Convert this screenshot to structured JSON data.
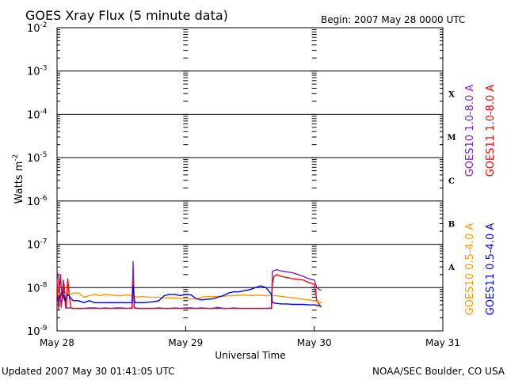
{
  "chart_data": {
    "type": "line",
    "title": "GOES Xray Flux (5 minute data)",
    "begin_label": "Begin:  2007 May 28 0000 UTC",
    "ylabel": "Watts m",
    "ylabel_sup": "-2",
    "xlabel": "Universal Time",
    "yscale": "log",
    "ylim": [
      1e-09,
      0.01
    ],
    "y_ticks": [
      {
        "value": 0.01,
        "base": "10",
        "exp": "-2"
      },
      {
        "value": 0.001,
        "base": "10",
        "exp": "-3"
      },
      {
        "value": 0.0001,
        "base": "10",
        "exp": "-4"
      },
      {
        "value": 1e-05,
        "base": "10",
        "exp": "-5"
      },
      {
        "value": 1e-06,
        "base": "10",
        "exp": "-6"
      },
      {
        "value": 1e-07,
        "base": "10",
        "exp": "-7"
      },
      {
        "value": 1e-08,
        "base": "10",
        "exp": "-8"
      },
      {
        "value": 1e-09,
        "base": "10",
        "exp": "-9"
      }
    ],
    "xlim": [
      0,
      72
    ],
    "x_ticks": [
      {
        "hours": 0,
        "label": "May 28"
      },
      {
        "hours": 24,
        "label": "May 29"
      },
      {
        "hours": 48,
        "label": "May 30"
      },
      {
        "hours": 72,
        "label": "May 31"
      }
    ],
    "flare_classes": [
      {
        "label": "X",
        "at": 0.0003
      },
      {
        "label": "M",
        "at": 3e-05
      },
      {
        "label": "C",
        "at": 3e-06
      },
      {
        "label": "B",
        "at": 3e-07
      },
      {
        "label": "A",
        "at": 3e-08
      }
    ],
    "grid": true,
    "series": [
      {
        "name": "GOES10 1.0-8.0 A",
        "color": "#7b24c8",
        "x": [
          0,
          0.4,
          0.8,
          1.2,
          1.6,
          2,
          2.5,
          3,
          4,
          5,
          6,
          7,
          8,
          9,
          10,
          11,
          12,
          13,
          14,
          14.2,
          14.4,
          14.7,
          15,
          16,
          17,
          18,
          19,
          20,
          21,
          22,
          23,
          24,
          25,
          26,
          27,
          28,
          29,
          30,
          31,
          32,
          33,
          34,
          35,
          36,
          37,
          38,
          39,
          40,
          40.2,
          41,
          41.4,
          42,
          43,
          44,
          45,
          46,
          47,
          48,
          48.5,
          49,
          49.3
        ],
        "y": [
          2.5e-08,
          1.2e-08,
          3.5e-09,
          1.5e-08,
          3.4e-09,
          3.4e-09,
          3.4e-09,
          3.3e-09,
          3.3e-09,
          3.3e-09,
          3.4e-09,
          3.4e-09,
          3.3e-09,
          3.4e-09,
          3.3e-09,
          3.4e-09,
          3.4e-09,
          3.3e-09,
          3.4e-09,
          4e-08,
          3.4e-09,
          3.4e-09,
          3.3e-09,
          3.3e-09,
          3.3e-09,
          3.3e-09,
          3.4e-09,
          3.3e-09,
          3.3e-09,
          3.4e-09,
          3.3e-09,
          3.4e-09,
          3.4e-09,
          3.3e-09,
          3.4e-09,
          3.3e-09,
          3.3e-09,
          3.5e-09,
          3.3e-09,
          3.3e-09,
          3.4e-09,
          3.3e-09,
          3.3e-09,
          3.3e-09,
          3.3e-09,
          3.3e-09,
          3.3e-09,
          3.4e-09,
          2.4e-08,
          2.6e-08,
          2.5e-08,
          2.4e-08,
          2.3e-08,
          2.2e-08,
          2e-08,
          1.8e-08,
          1.6e-08,
          1.5e-08,
          1e-08,
          9e-09,
          8.5e-09
        ]
      },
      {
        "name": "GOES11 1.0-8.0 A",
        "color": "#ff0000",
        "x": [
          0,
          0.3,
          0.6,
          1,
          1.3,
          1.7,
          2,
          2.3,
          2.6,
          3,
          3.5,
          4,
          5,
          6,
          7,
          8,
          9,
          10,
          11,
          12,
          13,
          14,
          14.2,
          14.4,
          14.7,
          15,
          16,
          17,
          18,
          19,
          20,
          21,
          22,
          23,
          24,
          25,
          26,
          27,
          28,
          29,
          30,
          31,
          32,
          33,
          34,
          35,
          36,
          37,
          38,
          39,
          40,
          40.2,
          40.5,
          41,
          41.4,
          42,
          43,
          44,
          45,
          46,
          47,
          48,
          48.5,
          49,
          49.3
        ],
        "y": [
          1.5e-08,
          3.2e-09,
          2e-08,
          5e-09,
          1.2e-08,
          3.3e-09,
          1.6e-08,
          6e-09,
          3.4e-09,
          3.3e-09,
          3.3e-09,
          3.3e-09,
          3.3e-09,
          3.3e-09,
          3.3e-09,
          3.3e-09,
          3.3e-09,
          3.3e-09,
          3.3e-09,
          3.3e-09,
          3.3e-09,
          3.3e-09,
          1.5e-08,
          3.4e-09,
          3.3e-09,
          3.3e-09,
          3.3e-09,
          3.3e-09,
          3.3e-09,
          3.3e-09,
          3.3e-09,
          3.3e-09,
          3.3e-09,
          3.3e-09,
          3.3e-09,
          3.3e-09,
          3.3e-09,
          3.3e-09,
          3.3e-09,
          3.3e-09,
          3.3e-09,
          3.3e-09,
          3.3e-09,
          3.3e-09,
          3.3e-09,
          3.3e-09,
          3.3e-09,
          3.3e-09,
          3.3e-09,
          3.3e-09,
          3.3e-09,
          1.3e-08,
          1.8e-08,
          2e-08,
          1.9e-08,
          1.8e-08,
          1.7e-08,
          1.6e-08,
          1.55e-08,
          1.5e-08,
          1.3e-08,
          1.2e-08,
          5e-09,
          4e-09,
          3.5e-09
        ]
      },
      {
        "name": "GOES10 0.5-4.0 A",
        "color": "#ff9900",
        "x": [
          0,
          1,
          2,
          3,
          4,
          5,
          6,
          7,
          8,
          9,
          10,
          11,
          12,
          13,
          14,
          15,
          16,
          17,
          18,
          19,
          20,
          21,
          22,
          23,
          24,
          25,
          26,
          27,
          28,
          29,
          30,
          31,
          32,
          33,
          34,
          35,
          36,
          37,
          38,
          39,
          40,
          41,
          42,
          43,
          44,
          45,
          46,
          47,
          48,
          48.5,
          49,
          49.3
        ],
        "y": [
          7e-09,
          7.5e-09,
          6.5e-09,
          7.5e-09,
          7.5e-09,
          6e-09,
          6.5e-09,
          7e-09,
          6.5e-09,
          7e-09,
          6.8e-09,
          6.5e-09,
          6.5e-09,
          6.8e-09,
          6.6e-09,
          6e-09,
          6.2e-09,
          6e-09,
          6e-09,
          6e-09,
          5.8e-09,
          5.8e-09,
          5.7e-09,
          5.6e-09,
          5.5e-09,
          5.5e-09,
          5.5e-09,
          6e-09,
          6.2e-09,
          6.2e-09,
          6.2e-09,
          6.3e-09,
          6.5e-09,
          6.5e-09,
          6.6e-09,
          6.8e-09,
          6.5e-09,
          6.7e-09,
          6.6e-09,
          6.5e-09,
          6.5e-09,
          6.5e-09,
          6.2e-09,
          6e-09,
          5.8e-09,
          5.6e-09,
          5.4e-09,
          5.2e-09,
          5e-09,
          4.8e-09,
          4.6e-09,
          4.5e-09
        ]
      },
      {
        "name": "GOES11 0.5-4.0 A",
        "color": "#0000ff",
        "x": [
          0,
          0.5,
          1,
          1.5,
          2,
          3,
          4,
          5,
          6,
          7,
          8,
          9,
          10,
          11,
          12,
          13,
          14,
          14.2,
          14.5,
          15,
          16,
          17,
          18,
          19,
          20,
          21,
          22,
          23,
          24,
          25,
          26,
          27,
          28,
          29,
          30,
          31,
          32,
          33,
          34,
          35,
          36,
          37,
          38,
          39,
          40,
          40.2,
          41,
          42,
          43,
          44,
          45,
          46,
          47,
          48,
          48.5,
          49,
          49.3
        ],
        "y": [
          5e-09,
          6e-09,
          8e-09,
          5e-09,
          7e-09,
          5e-09,
          5e-09,
          4.5e-09,
          5e-09,
          4.5e-09,
          4.5e-09,
          4.5e-09,
          4.5e-09,
          4.5e-09,
          4.5e-09,
          4.5e-09,
          4.5e-09,
          1.1e-08,
          4.5e-09,
          4.5e-09,
          4.5e-09,
          4.6e-09,
          4.7e-09,
          5e-09,
          6.5e-09,
          7e-09,
          7e-09,
          6.5e-09,
          7e-09,
          6.8e-09,
          5.5e-09,
          5.2e-09,
          5.4e-09,
          5.5e-09,
          6e-09,
          6.5e-09,
          7.5e-09,
          8e-09,
          8e-09,
          8.5e-09,
          9e-09,
          1e-08,
          1.1e-08,
          1e-08,
          7e-09,
          4.5e-09,
          4.3e-09,
          4.2e-09,
          4.2e-09,
          4.1e-09,
          4.1e-09,
          4.1e-09,
          4e-09,
          4e-09,
          3.9e-09,
          3.8e-09,
          3.7e-09
        ]
      }
    ]
  },
  "footer": {
    "updated": "Updated 2007 May 30 01:41:05 UTC",
    "credit": "NOAA/SEC Boulder, CO USA"
  }
}
